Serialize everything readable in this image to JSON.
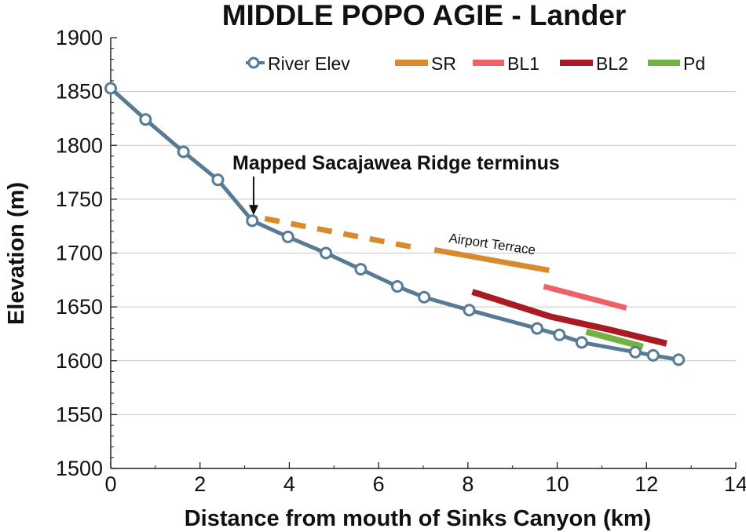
{
  "chart_data": {
    "type": "line",
    "title": "MIDDLE POPO AGIE - Lander",
    "xlabel": "Distance from mouth of Sinks Canyon (km)",
    "ylabel": "Elevation (m)",
    "xlim": [
      0,
      14
    ],
    "ylim": [
      1500,
      1900
    ],
    "x_ticks": [
      "0",
      "2",
      "4",
      "6",
      "8",
      "10",
      "12",
      "14"
    ],
    "y_ticks": [
      "1500",
      "1550",
      "1600",
      "1650",
      "1700",
      "1750",
      "1800",
      "1850",
      "1900"
    ],
    "grid": "horizontal",
    "legend_position": "top",
    "series": [
      {
        "name": "River Elev",
        "color": "#577a95",
        "marker": "open-circle",
        "points": [
          [
            0,
            1853
          ],
          [
            0.78,
            1824
          ],
          [
            1.63,
            1794
          ],
          [
            2.4,
            1768
          ],
          [
            3.17,
            1730
          ],
          [
            3.97,
            1715
          ],
          [
            4.82,
            1700
          ],
          [
            5.6,
            1685
          ],
          [
            6.42,
            1669
          ],
          [
            7.02,
            1659
          ],
          [
            8.03,
            1647
          ],
          [
            9.55,
            1630
          ],
          [
            10.05,
            1624
          ],
          [
            10.55,
            1617
          ],
          [
            11.75,
            1608
          ],
          [
            12.15,
            1605
          ],
          [
            12.72,
            1601
          ]
        ]
      },
      {
        "name": "SR",
        "color": "#d88a2e",
        "segments": [
          {
            "style": "dashed",
            "points": [
              [
                3.45,
                1732
              ],
              [
                6.95,
                1704
              ]
            ]
          },
          {
            "style": "solid",
            "points": [
              [
                7.25,
                1703
              ],
              [
                9.82,
                1684
              ]
            ]
          }
        ]
      },
      {
        "name": "BL1",
        "color": "#ee6169",
        "segments": [
          {
            "style": "solid",
            "points": [
              [
                9.7,
                1669
              ],
              [
                11.55,
                1649
              ]
            ]
          }
        ]
      },
      {
        "name": "BL2",
        "color": "#aa1a22",
        "segments": [
          {
            "style": "solid",
            "points": [
              [
                8.1,
                1664
              ],
              [
                9.85,
                1641
              ],
              [
                11.15,
                1629
              ],
              [
                12.45,
                1616
              ]
            ]
          }
        ]
      },
      {
        "name": "Pd",
        "color": "#72b241",
        "segments": [
          {
            "style": "solid",
            "points": [
              [
                10.65,
                1627
              ],
              [
                11.92,
                1613
              ]
            ]
          }
        ]
      }
    ],
    "annotations": [
      {
        "text": "Mapped Sacajawea Ridge terminus",
        "target": [
          3.2,
          1733
        ],
        "arrow": true
      },
      {
        "text": "Airport Terrace",
        "at": [
          7.3,
          1705
        ]
      }
    ]
  }
}
